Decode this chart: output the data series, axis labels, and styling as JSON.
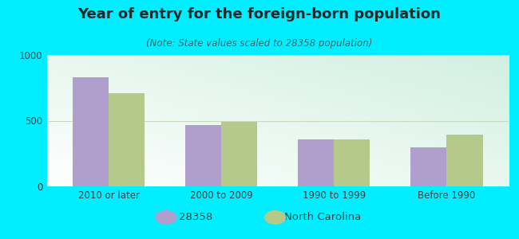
{
  "title": "Year of entry for the foreign-born population",
  "subtitle": "(Note: State values scaled to 28358 population)",
  "categories": [
    "2010 or later",
    "2000 to 2009",
    "1990 to 1999",
    "Before 1990"
  ],
  "series": [
    {
      "label": "28358",
      "values": [
        830,
        465,
        355,
        300
      ],
      "color": "#b09fcc"
    },
    {
      "label": "North Carolina",
      "values": [
        710,
        490,
        360,
        395
      ],
      "color": "#b5c98a"
    }
  ],
  "ylim": [
    0,
    1000
  ],
  "yticks": [
    0,
    500,
    1000
  ],
  "background_outer": "#00eeff",
  "background_inner_top": "#e8f5e8",
  "background_inner_bottom": "#d0ede0",
  "grid_color": "#c8d8c0",
  "bar_width": 0.32,
  "title_fontsize": 13,
  "subtitle_fontsize": 8.5,
  "tick_fontsize": 8.5,
  "legend_fontsize": 9.5,
  "title_color": "#1a2a2a",
  "subtitle_color": "#446666",
  "tick_color": "#334444"
}
